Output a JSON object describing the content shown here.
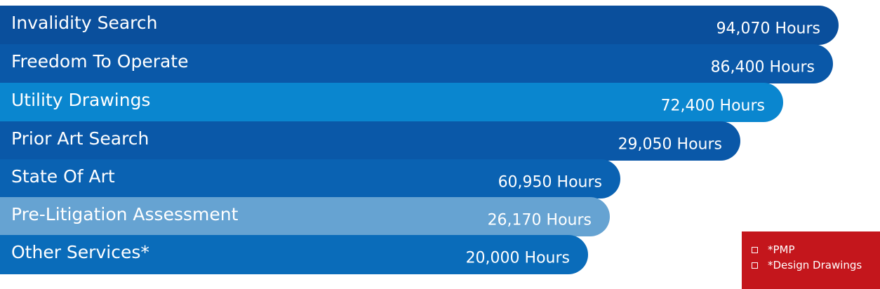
{
  "chart_data": {
    "type": "bar",
    "orientation": "horizontal",
    "categories": [
      "Invalidity Search",
      "Freedom To Operate",
      "Utility Drawings",
      "Prior Art Search",
      "State Of Art",
      "Pre-Litigation Assessment",
      "Other Services*"
    ],
    "values": [
      94070,
      86400,
      72400,
      29050,
      60950,
      26170,
      20000
    ],
    "value_labels": [
      "94,070 Hours",
      "86,400 Hours",
      "72,400 Hours",
      "29,050 Hours",
      "60,950 Hours",
      "26,170 Hours",
      "20,000 Hours"
    ],
    "colors": [
      "#0a4f9c",
      "#0a58a8",
      "#0a86cf",
      "#0a58a8",
      "#0a62b2",
      "#66a3d2",
      "#0a6cba"
    ],
    "title": "",
    "xlabel": "",
    "ylabel": "",
    "grid": false
  },
  "notes": {
    "items": [
      "*PMP",
      "*Design Drawings"
    ],
    "background_color": "#c4161c",
    "icon": "square-bullet-icon"
  }
}
